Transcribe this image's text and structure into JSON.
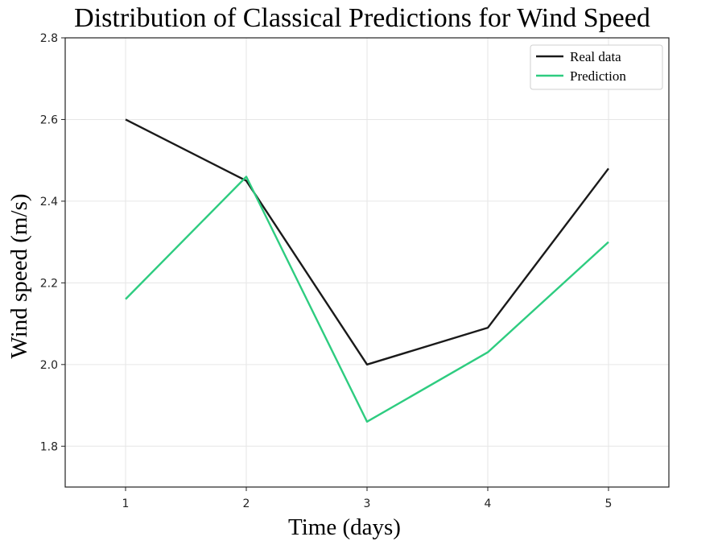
{
  "chart_data": {
    "type": "line",
    "title": "Distribution of Classical Predictions for Wind Speed",
    "xlabel": "Time (days)",
    "ylabel": "Wind speed (m/s)",
    "x": [
      1,
      2,
      3,
      4,
      5
    ],
    "x_ticks": [
      "1",
      "2",
      "3",
      "4",
      "5"
    ],
    "y_ticks": [
      "1.8",
      "2.0",
      "2.2",
      "2.4",
      "2.6",
      "2.8"
    ],
    "xlim": [
      0.5,
      5.5
    ],
    "ylim": [
      1.7,
      2.8
    ],
    "grid": true,
    "legend_position": "top-right",
    "series": [
      {
        "name": "Real data",
        "color": "#1a1a1a",
        "values": [
          2.6,
          2.45,
          2.0,
          2.09,
          2.48
        ]
      },
      {
        "name": "Prediction",
        "color": "#2ecc80",
        "values": [
          2.16,
          2.46,
          1.86,
          2.03,
          2.3
        ]
      }
    ]
  }
}
